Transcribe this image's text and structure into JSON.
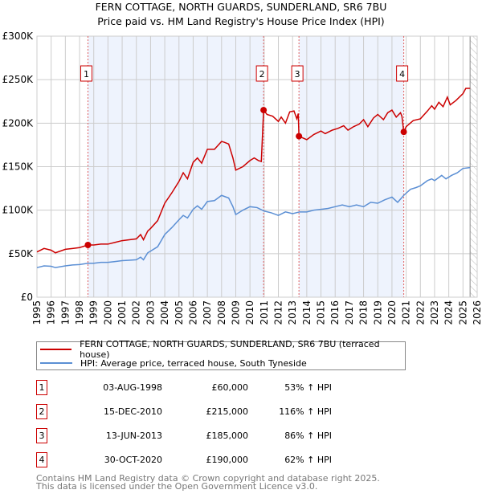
{
  "chart_data": {
    "type": "line",
    "title": "FERN COTTAGE, NORTH GUARDS, SUNDERLAND, SR6 7BU",
    "subtitle": "Price paid vs. HM Land Registry's House Price Index (HPI)",
    "xlim": [
      1995,
      2026
    ],
    "ylim": [
      0,
      300000
    ],
    "yticks": [
      {
        "v": 0,
        "label": "£0"
      },
      {
        "v": 50000,
        "label": "£50K"
      },
      {
        "v": 100000,
        "label": "£100K"
      },
      {
        "v": 150000,
        "label": "£150K"
      },
      {
        "v": 200000,
        "label": "£200K"
      },
      {
        "v": 250000,
        "label": "£250K"
      },
      {
        "v": 300000,
        "label": "£300K"
      }
    ],
    "xticks": [
      "1995",
      "1996",
      "1997",
      "1998",
      "1999",
      "2000",
      "2001",
      "2002",
      "2003",
      "2004",
      "2005",
      "2006",
      "2007",
      "2008",
      "2009",
      "2010",
      "2011",
      "2012",
      "2013",
      "2014",
      "2015",
      "2016",
      "2017",
      "2018",
      "2019",
      "2020",
      "2021",
      "2022",
      "2023",
      "2024",
      "2025",
      "2026"
    ],
    "grid": true,
    "legend_placement": "below",
    "series": [
      {
        "name": "FERN COTTAGE, NORTH GUARDS, SUNDERLAND, SR6 7BU (terraced house)",
        "color": "#cc0000",
        "points": [
          [
            1995,
            52
          ],
          [
            1995.5,
            56
          ],
          [
            1996,
            54
          ],
          [
            1996.3,
            51
          ],
          [
            1997,
            55
          ],
          [
            1997.5,
            56
          ],
          [
            1998,
            57
          ],
          [
            1998.59,
            60
          ],
          [
            1999,
            60
          ],
          [
            1999.5,
            61
          ],
          [
            2000,
            61
          ],
          [
            2000.5,
            63
          ],
          [
            2001,
            65
          ],
          [
            2001.5,
            66
          ],
          [
            2002,
            67
          ],
          [
            2002.3,
            72
          ],
          [
            2002.5,
            66
          ],
          [
            2002.8,
            76
          ],
          [
            2003,
            79
          ],
          [
            2003.5,
            88
          ],
          [
            2004,
            108
          ],
          [
            2004.5,
            120
          ],
          [
            2005,
            133
          ],
          [
            2005.3,
            143
          ],
          [
            2005.6,
            136
          ],
          [
            2006,
            155
          ],
          [
            2006.3,
            160
          ],
          [
            2006.6,
            154
          ],
          [
            2007,
            170
          ],
          [
            2007.5,
            170
          ],
          [
            2008,
            179
          ],
          [
            2008.2,
            178
          ],
          [
            2008.5,
            176
          ],
          [
            2008.8,
            160
          ],
          [
            2009,
            146
          ],
          [
            2009.5,
            150
          ],
          [
            2010,
            157
          ],
          [
            2010.3,
            160
          ],
          [
            2010.6,
            157
          ],
          [
            2010.8,
            156
          ],
          [
            2010.96,
            215
          ],
          [
            2011.2,
            210
          ],
          [
            2011.6,
            208
          ],
          [
            2012,
            202
          ],
          [
            2012.2,
            207
          ],
          [
            2012.5,
            200
          ],
          [
            2012.8,
            213
          ],
          [
            2013.1,
            214
          ],
          [
            2013.3,
            205
          ],
          [
            2013.4,
            211
          ],
          [
            2013.45,
            185
          ],
          [
            2014,
            181
          ],
          [
            2014.5,
            187
          ],
          [
            2015,
            191
          ],
          [
            2015.3,
            188
          ],
          [
            2015.8,
            192
          ],
          [
            2016.2,
            194
          ],
          [
            2016.6,
            197
          ],
          [
            2016.9,
            192
          ],
          [
            2017.3,
            196
          ],
          [
            2017.7,
            199
          ],
          [
            2018,
            204
          ],
          [
            2018.3,
            196
          ],
          [
            2018.7,
            206
          ],
          [
            2019,
            210
          ],
          [
            2019.4,
            204
          ],
          [
            2019.7,
            212
          ],
          [
            2020,
            215
          ],
          [
            2020.3,
            207
          ],
          [
            2020.6,
            212
          ],
          [
            2020.7,
            208
          ],
          [
            2020.83,
            190
          ],
          [
            2021,
            196
          ],
          [
            2021.5,
            203
          ],
          [
            2022,
            205
          ],
          [
            2022.5,
            214
          ],
          [
            2022.8,
            220
          ],
          [
            2023,
            216
          ],
          [
            2023.3,
            224
          ],
          [
            2023.6,
            219
          ],
          [
            2023.9,
            230
          ],
          [
            2024.1,
            221
          ],
          [
            2024.5,
            226
          ],
          [
            2025,
            234
          ],
          [
            2025.2,
            240
          ],
          [
            2025.5,
            240
          ]
        ]
      },
      {
        "name": "HPI: Average price, terraced house, South Tyneside",
        "color": "#5b8fd4",
        "points": [
          [
            1995,
            34
          ],
          [
            1995.5,
            36
          ],
          [
            1996,
            35.5
          ],
          [
            1996.3,
            34
          ],
          [
            1997,
            36
          ],
          [
            1997.5,
            37
          ],
          [
            1998,
            37.5
          ],
          [
            1998.59,
            39
          ],
          [
            1999,
            39
          ],
          [
            1999.5,
            40
          ],
          [
            2000,
            40
          ],
          [
            2000.5,
            41
          ],
          [
            2001,
            42
          ],
          [
            2001.5,
            42.5
          ],
          [
            2002,
            43
          ],
          [
            2002.3,
            46
          ],
          [
            2002.5,
            43
          ],
          [
            2002.8,
            51
          ],
          [
            2003,
            53
          ],
          [
            2003.5,
            58
          ],
          [
            2004,
            72
          ],
          [
            2004.5,
            80
          ],
          [
            2005,
            89
          ],
          [
            2005.3,
            94
          ],
          [
            2005.6,
            91
          ],
          [
            2006,
            101
          ],
          [
            2006.3,
            105
          ],
          [
            2006.6,
            101
          ],
          [
            2007,
            110
          ],
          [
            2007.5,
            111
          ],
          [
            2008,
            117
          ],
          [
            2008.5,
            114
          ],
          [
            2008.8,
            104
          ],
          [
            2009,
            95
          ],
          [
            2009.5,
            100
          ],
          [
            2010,
            104
          ],
          [
            2010.5,
            103
          ],
          [
            2011,
            99
          ],
          [
            2011.5,
            97
          ],
          [
            2012,
            94
          ],
          [
            2012.5,
            98
          ],
          [
            2013,
            96
          ],
          [
            2013.5,
            98
          ],
          [
            2014,
            98
          ],
          [
            2014.5,
            100
          ],
          [
            2015,
            101
          ],
          [
            2015.5,
            102
          ],
          [
            2016,
            104
          ],
          [
            2016.5,
            106
          ],
          [
            2017,
            104
          ],
          [
            2017.5,
            106
          ],
          [
            2018,
            104
          ],
          [
            2018.5,
            109
          ],
          [
            2019,
            108
          ],
          [
            2019.5,
            112
          ],
          [
            2020,
            115
          ],
          [
            2020.4,
            109
          ],
          [
            2020.83,
            117
          ],
          [
            2021.3,
            124
          ],
          [
            2021.7,
            126
          ],
          [
            2022,
            128
          ],
          [
            2022.5,
            134
          ],
          [
            2022.8,
            136
          ],
          [
            2023,
            134
          ],
          [
            2023.5,
            140
          ],
          [
            2023.8,
            136
          ],
          [
            2024.2,
            140
          ],
          [
            2024.6,
            143
          ],
          [
            2025,
            148
          ],
          [
            2025.5,
            149
          ]
        ]
      }
    ],
    "sales": [
      {
        "id": "1",
        "x": 1998.59,
        "value": 60000
      },
      {
        "id": "2",
        "x": 2010.96,
        "value": 215000
      },
      {
        "id": "3",
        "x": 2013.45,
        "value": 185000
      },
      {
        "id": "4",
        "x": 2020.83,
        "value": 190000
      }
    ],
    "shaded_periods": [
      [
        1998.59,
        2010.96
      ],
      [
        2013.45,
        2020.83
      ]
    ],
    "forecast_from": 2025.5,
    "colors": {
      "shade": "#eef3fd",
      "grid": "#cccccc",
      "marker": "#cc0000"
    }
  },
  "legend": {
    "items": [
      {
        "label": "FERN COTTAGE, NORTH GUARDS, SUNDERLAND, SR6 7BU (terraced house)",
        "color": "#cc0000"
      },
      {
        "label": "HPI: Average price, terraced house, South Tyneside",
        "color": "#5b8fd4"
      }
    ]
  },
  "table": [
    {
      "num": "1",
      "date": "03-AUG-1998",
      "price": "£60,000",
      "hpi": "53% ↑ HPI"
    },
    {
      "num": "2",
      "date": "15-DEC-2010",
      "price": "£215,000",
      "hpi": "116% ↑ HPI"
    },
    {
      "num": "3",
      "date": "13-JUN-2013",
      "price": "£185,000",
      "hpi": "86% ↑ HPI"
    },
    {
      "num": "4",
      "date": "30-OCT-2020",
      "price": "£190,000",
      "hpi": "62% ↑ HPI"
    }
  ],
  "footer": {
    "line1": "Contains HM Land Registry data © Crown copyright and database right 2025.",
    "line2": "This data is licensed under the Open Government Licence v3.0."
  }
}
